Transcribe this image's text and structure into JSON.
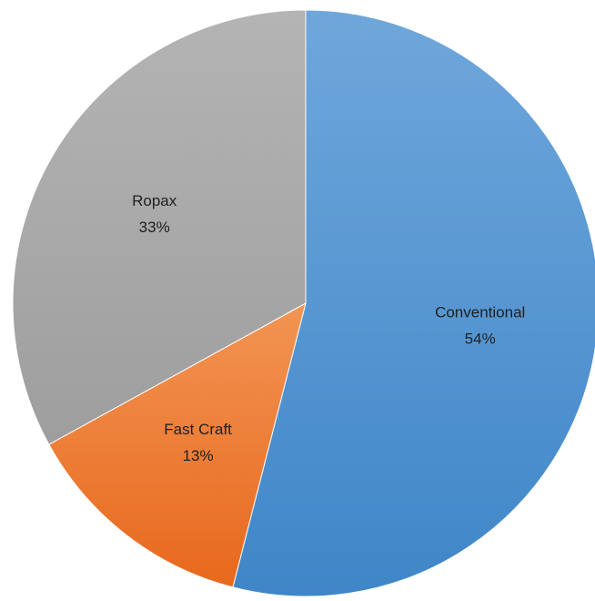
{
  "chart_data": {
    "type": "pie",
    "title": "",
    "categories": [
      "Conventional",
      "Fast Craft",
      "Ropax"
    ],
    "values": [
      54,
      13,
      33
    ],
    "labels": [
      "54%",
      "13%",
      "33%"
    ],
    "start_angle_deg": 0,
    "direction": "clockwise",
    "legend": "none",
    "data_labels": "category-and-percent",
    "colors": {
      "Conventional": [
        "#6fa7db",
        "#3f86c8"
      ],
      "Fast Craft": [
        "#f29553",
        "#e8681d"
      ],
      "Ropax": [
        "#b4b4b4",
        "#9e9e9e"
      ]
    }
  }
}
